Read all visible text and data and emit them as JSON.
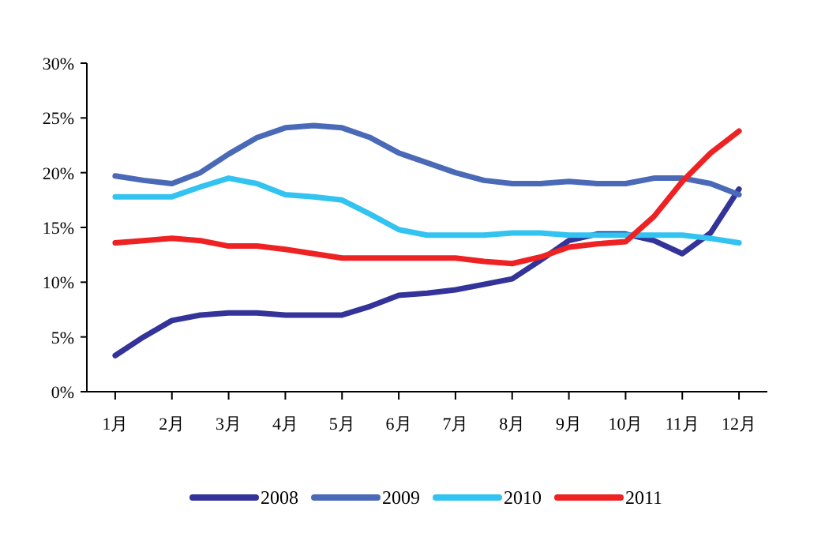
{
  "chart_data": {
    "type": "line",
    "x": [
      1,
      1.5,
      2,
      2.5,
      3,
      3.5,
      4,
      4.5,
      5,
      5.5,
      6,
      6.5,
      7,
      7.5,
      8,
      8.5,
      9,
      9.5,
      10,
      10.5,
      11,
      11.5,
      12
    ],
    "xlim": [
      0.5,
      12.5
    ],
    "xticks": [
      {
        "value": 1,
        "label": "1月"
      },
      {
        "value": 2,
        "label": "2月"
      },
      {
        "value": 3,
        "label": "3月"
      },
      {
        "value": 4,
        "label": "4月"
      },
      {
        "value": 5,
        "label": "5月"
      },
      {
        "value": 6,
        "label": "6月"
      },
      {
        "value": 7,
        "label": "7月"
      },
      {
        "value": 8,
        "label": "8月"
      },
      {
        "value": 9,
        "label": "9月"
      },
      {
        "value": 10,
        "label": "10月"
      },
      {
        "value": 11,
        "label": "11月"
      },
      {
        "value": 12,
        "label": "12月"
      }
    ],
    "ylim": [
      0,
      30
    ],
    "yticks": [
      {
        "value": 0,
        "label": "0%"
      },
      {
        "value": 5,
        "label": "5%"
      },
      {
        "value": 10,
        "label": "10%"
      },
      {
        "value": 15,
        "label": "15%"
      },
      {
        "value": 20,
        "label": "20%"
      },
      {
        "value": 25,
        "label": "25%"
      },
      {
        "value": 30,
        "label": "30%"
      }
    ],
    "grid": false,
    "legend": "bottom",
    "marker": "none",
    "line_style": "solid",
    "series": [
      {
        "name": "2008",
        "color": "#333399",
        "values": [
          3.3,
          5.0,
          6.5,
          7.0,
          7.2,
          7.2,
          7.0,
          7.0,
          7.0,
          7.8,
          8.8,
          9.0,
          9.3,
          9.8,
          10.3,
          12.0,
          13.8,
          14.4,
          14.4,
          13.8,
          12.6,
          14.5,
          18.5
        ]
      },
      {
        "name": "2009",
        "color": "#4a6ab8",
        "values": [
          19.7,
          19.3,
          19.0,
          20.0,
          21.7,
          23.2,
          24.1,
          24.3,
          24.1,
          23.2,
          21.8,
          20.9,
          20.0,
          19.3,
          19.0,
          19.0,
          19.2,
          19.0,
          19.0,
          19.5,
          19.5,
          19.0,
          18.0
        ]
      },
      {
        "name": "2010",
        "color": "#33c3f0",
        "values": [
          17.8,
          17.8,
          17.8,
          18.7,
          19.5,
          19.0,
          18.0,
          17.8,
          17.5,
          16.2,
          14.8,
          14.3,
          14.3,
          14.3,
          14.5,
          14.5,
          14.3,
          14.3,
          14.3,
          14.3,
          14.3,
          14.0,
          13.6
        ]
      },
      {
        "name": "2011",
        "color": "#ee2222",
        "values": [
          13.6,
          13.8,
          14.0,
          13.8,
          13.3,
          13.3,
          13.0,
          12.6,
          12.2,
          12.2,
          12.2,
          12.2,
          12.2,
          11.9,
          11.7,
          12.3,
          13.2,
          13.5,
          13.7,
          16.0,
          19.2,
          21.8,
          23.8
        ]
      }
    ]
  }
}
